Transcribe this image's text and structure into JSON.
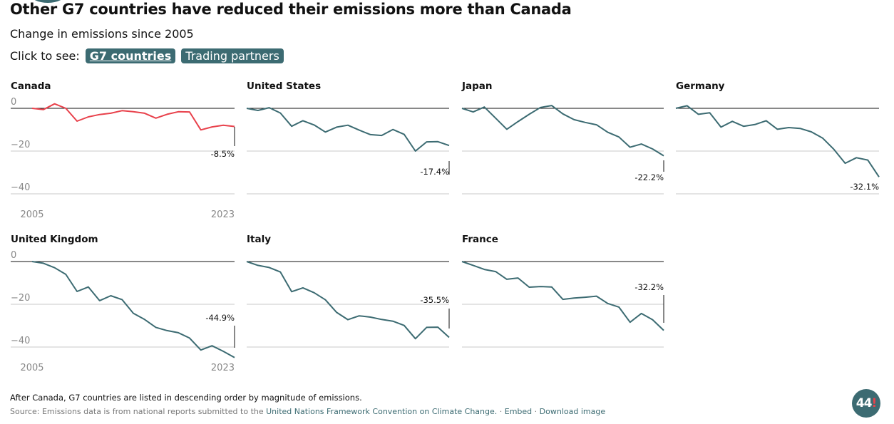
{
  "header": {
    "title": "Other G7 countries have reduced their emissions more than Canada",
    "subtitle": "Change in emissions since 2005",
    "click_prompt": "Click to see:",
    "buttons": [
      {
        "label": "G7 countries",
        "active": true
      },
      {
        "label": "Trading partners",
        "active": false
      }
    ]
  },
  "colors": {
    "canada": "#e8414b",
    "others": "#3c6b72",
    "accent": "#3c6b72"
  },
  "chart_data": {
    "type": "line",
    "x": [
      2005,
      2006,
      2007,
      2008,
      2009,
      2010,
      2011,
      2012,
      2013,
      2014,
      2015,
      2016,
      2017,
      2018,
      2019,
      2020,
      2021,
      2022,
      2023
    ],
    "x_tick_labels": [
      "2005",
      "2023"
    ],
    "y_ticks": [
      "0",
      "−20",
      "−40"
    ],
    "ylim": [
      -45,
      3
    ],
    "grid": true,
    "series": [
      {
        "name": "Canada",
        "final_label": "-8.5%",
        "values": [
          0,
          -0.6,
          2.1,
          0,
          -6,
          -4,
          -2.9,
          -2.3,
          -1.1,
          -1.6,
          -2.3,
          -4.6,
          -2.8,
          -1.6,
          -1.7,
          -10.1,
          -8.7,
          -7.9,
          -8.5
        ]
      },
      {
        "name": "United States",
        "final_label": "-17.4%",
        "values": [
          0,
          -1,
          0.3,
          -2.2,
          -8.4,
          -5.8,
          -7.8,
          -11.1,
          -8.8,
          -7.9,
          -10.2,
          -12.3,
          -12.7,
          -9.9,
          -12.2,
          -20,
          -15.7,
          -15.6,
          -17.4
        ]
      },
      {
        "name": "Japan",
        "final_label": "-22.2%",
        "values": [
          0,
          -1.7,
          0.6,
          -4.6,
          -9.8,
          -6.2,
          -2.8,
          0.4,
          1.3,
          -2.6,
          -5.3,
          -6.6,
          -7.7,
          -11.2,
          -13.4,
          -18.2,
          -16.7,
          -19,
          -22.2
        ]
      },
      {
        "name": "Germany",
        "final_label": "-32.1%",
        "values": [
          0,
          1.2,
          -2.8,
          -2.1,
          -8.8,
          -6.1,
          -8.4,
          -7.6,
          -5.8,
          -9.8,
          -9,
          -9.4,
          -11,
          -13.9,
          -19.2,
          -25.7,
          -23.1,
          -24.2,
          -32.1
        ]
      },
      {
        "name": "United Kingdom",
        "final_label": "-44.9%",
        "values": [
          0,
          -0.8,
          -2.9,
          -6,
          -14,
          -11.9,
          -18.3,
          -16,
          -17.8,
          -24.2,
          -27.1,
          -30.8,
          -32.3,
          -33.3,
          -35.8,
          -41.4,
          -39.4,
          -42,
          -44.9
        ]
      },
      {
        "name": "Italy",
        "final_label": "-35.5%",
        "values": [
          0,
          -1.8,
          -2.8,
          -4.9,
          -14.1,
          -12.3,
          -14.6,
          -17.9,
          -23.8,
          -27.2,
          -25.4,
          -26,
          -27.1,
          -27.9,
          -29.9,
          -36.1,
          -30.8,
          -30.7,
          -35.5
        ]
      },
      {
        "name": "France",
        "final_label": "-32.2%",
        "values": [
          0,
          -1.8,
          -3.7,
          -4.7,
          -8.3,
          -7.7,
          -12,
          -11.7,
          -11.9,
          -17.7,
          -17.1,
          -16.7,
          -16.2,
          -19.6,
          -21.3,
          -28.4,
          -24.3,
          -27.2,
          -32.2
        ]
      }
    ]
  },
  "footer": {
    "note": "After Canada, G7 countries are listed in descending order by magnitude of emissions.",
    "source_prefix": "Source: Emissions data is from national reports submitted to the ",
    "source_link": "United Nations Framework Convention on Climate Change.",
    "sep1": " · ",
    "embed": "Embed",
    "sep2": " · ",
    "download": "Download image",
    "logo_text": "440"
  }
}
